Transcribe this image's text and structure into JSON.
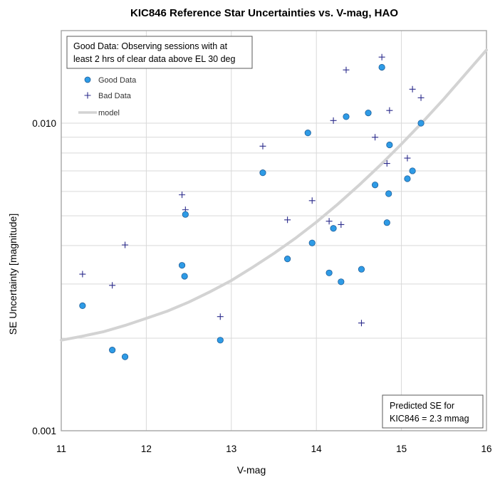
{
  "chart_data": {
    "type": "scatter",
    "title": "KIC846 Reference Star Uncertainties vs. V-mag, HAO",
    "xlabel": "V-mag",
    "ylabel": "SE Uncertainty [magnitude]",
    "xlim": [
      11,
      16
    ],
    "ylim": [
      0.001,
      0.02
    ],
    "y_scale": "log",
    "x_ticks": [
      "11",
      "12",
      "13",
      "14",
      "15",
      "16"
    ],
    "y_ticks": [
      {
        "value": 0.001,
        "label": "0.001"
      },
      {
        "value": 0.01,
        "label": "0.010"
      }
    ],
    "grid": true,
    "colors": {
      "good": "#2e9be6",
      "good_edge": "#1f5f9a",
      "bad": "#2b2b8c",
      "model": "#d3d3d3",
      "grid": "#d9d9d9"
    },
    "annotations": {
      "top_note_lines": [
        "Good Data:  Observing sessions with at",
        "least 2 hrs of clear data above EL 30 deg"
      ],
      "bottom_note_lines": [
        "Predicted SE for",
        "KIC846 = 2.3 mmag"
      ]
    },
    "legend": {
      "placement": "top-left",
      "good_label": "Good Data",
      "bad_label": "Bad Data",
      "model_label": "model"
    },
    "series": [
      {
        "name": "Good Data",
        "marker": "circle",
        "points": [
          {
            "x": 11.25,
            "y": 0.00255
          },
          {
            "x": 11.6,
            "y": 0.00183
          },
          {
            "x": 11.75,
            "y": 0.00174
          },
          {
            "x": 12.42,
            "y": 0.00345
          },
          {
            "x": 12.45,
            "y": 0.00318
          },
          {
            "x": 12.46,
            "y": 0.00505
          },
          {
            "x": 12.87,
            "y": 0.00197
          },
          {
            "x": 13.37,
            "y": 0.0069
          },
          {
            "x": 13.66,
            "y": 0.00362
          },
          {
            "x": 13.9,
            "y": 0.0093
          },
          {
            "x": 13.95,
            "y": 0.00408
          },
          {
            "x": 14.15,
            "y": 0.00326
          },
          {
            "x": 14.2,
            "y": 0.00455
          },
          {
            "x": 14.29,
            "y": 0.00305
          },
          {
            "x": 14.35,
            "y": 0.0105
          },
          {
            "x": 14.53,
            "y": 0.00335
          },
          {
            "x": 14.61,
            "y": 0.0108
          },
          {
            "x": 14.69,
            "y": 0.0063
          },
          {
            "x": 14.77,
            "y": 0.0152
          },
          {
            "x": 14.83,
            "y": 0.00475
          },
          {
            "x": 14.85,
            "y": 0.0059
          },
          {
            "x": 14.86,
            "y": 0.0085
          },
          {
            "x": 15.07,
            "y": 0.0066
          },
          {
            "x": 15.13,
            "y": 0.007
          },
          {
            "x": 15.23,
            "y": 0.01
          }
        ]
      },
      {
        "name": "Bad Data",
        "marker": "plus",
        "points": [
          {
            "x": 11.25,
            "y": 0.00323
          },
          {
            "x": 11.6,
            "y": 0.00297
          },
          {
            "x": 11.75,
            "y": 0.00402
          },
          {
            "x": 12.42,
            "y": 0.00585
          },
          {
            "x": 12.46,
            "y": 0.00523
          },
          {
            "x": 12.87,
            "y": 0.00235
          },
          {
            "x": 13.37,
            "y": 0.00842
          },
          {
            "x": 13.66,
            "y": 0.00485
          },
          {
            "x": 13.95,
            "y": 0.0056
          },
          {
            "x": 14.15,
            "y": 0.0048
          },
          {
            "x": 14.2,
            "y": 0.0102
          },
          {
            "x": 14.29,
            "y": 0.00468
          },
          {
            "x": 14.35,
            "y": 0.0149
          },
          {
            "x": 14.53,
            "y": 0.00224
          },
          {
            "x": 14.69,
            "y": 0.009
          },
          {
            "x": 14.77,
            "y": 0.0164
          },
          {
            "x": 14.83,
            "y": 0.0074
          },
          {
            "x": 14.86,
            "y": 0.011
          },
          {
            "x": 15.07,
            "y": 0.0077
          },
          {
            "x": 15.13,
            "y": 0.0129
          },
          {
            "x": 15.23,
            "y": 0.0121
          }
        ]
      },
      {
        "name": "model",
        "marker": "line",
        "points": [
          {
            "x": 11.0,
            "y": 0.00197
          },
          {
            "x": 11.25,
            "y": 0.00203
          },
          {
            "x": 11.5,
            "y": 0.0021
          },
          {
            "x": 11.75,
            "y": 0.0022
          },
          {
            "x": 12.0,
            "y": 0.00232
          },
          {
            "x": 12.25,
            "y": 0.00245
          },
          {
            "x": 12.5,
            "y": 0.00262
          },
          {
            "x": 12.75,
            "y": 0.00283
          },
          {
            "x": 13.0,
            "y": 0.00308
          },
          {
            "x": 13.25,
            "y": 0.0034
          },
          {
            "x": 13.5,
            "y": 0.00377
          },
          {
            "x": 13.75,
            "y": 0.00422
          },
          {
            "x": 14.0,
            "y": 0.00477
          },
          {
            "x": 14.25,
            "y": 0.00545
          },
          {
            "x": 14.5,
            "y": 0.00628
          },
          {
            "x": 14.75,
            "y": 0.0073
          },
          {
            "x": 15.0,
            "y": 0.00855
          },
          {
            "x": 15.25,
            "y": 0.0101
          },
          {
            "x": 15.5,
            "y": 0.012
          },
          {
            "x": 15.75,
            "y": 0.0144
          },
          {
            "x": 16.0,
            "y": 0.0173
          }
        ]
      }
    ]
  }
}
